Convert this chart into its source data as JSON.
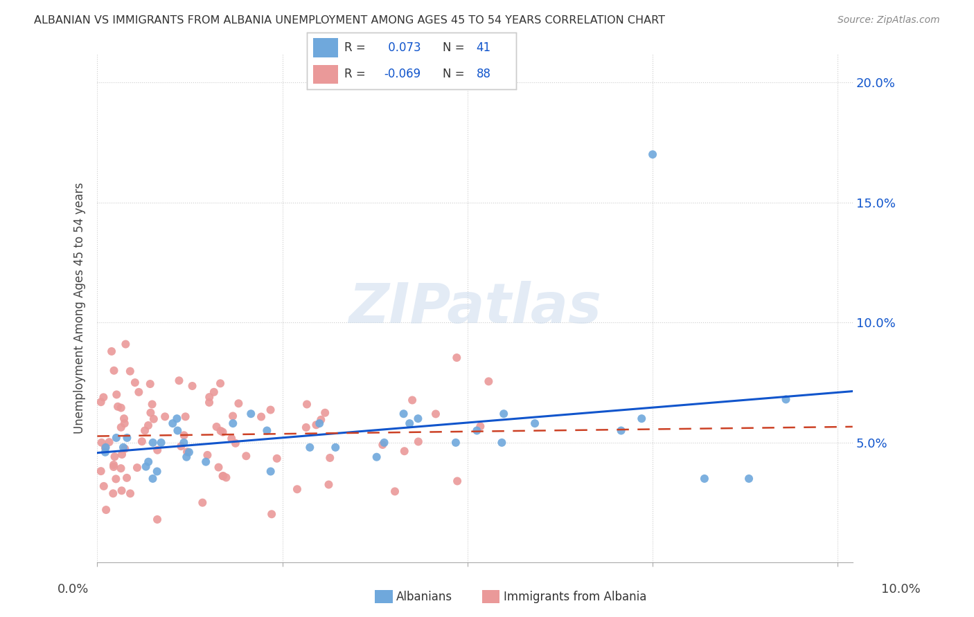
{
  "title": "ALBANIAN VS IMMIGRANTS FROM ALBANIA UNEMPLOYMENT AMONG AGES 45 TO 54 YEARS CORRELATION CHART",
  "source": "Source: ZipAtlas.com",
  "ylabel": "Unemployment Among Ages 45 to 54 years",
  "xlim": [
    0.0,
    0.102
  ],
  "ylim": [
    0.0,
    0.212
  ],
  "yticks": [
    0.05,
    0.1,
    0.15,
    0.2
  ],
  "ytick_labels": [
    "5.0%",
    "10.0%",
    "15.0%",
    "20.0%"
  ],
  "blue_color": "#6fa8dc",
  "pink_color": "#ea9999",
  "blue_line_color": "#1155cc",
  "pink_line_color": "#cc4125",
  "watermark": "ZIPatlas",
  "legend_r1": "R = ",
  "legend_v1": "0.073",
  "legend_n1_label": "N = ",
  "legend_n1": "41",
  "legend_r2": "R = ",
  "legend_v2": "-0.069",
  "legend_n2_label": "N = ",
  "legend_n2": "88",
  "bottom_label1": "Albanians",
  "bottom_label2": "Immigrants from Albania"
}
